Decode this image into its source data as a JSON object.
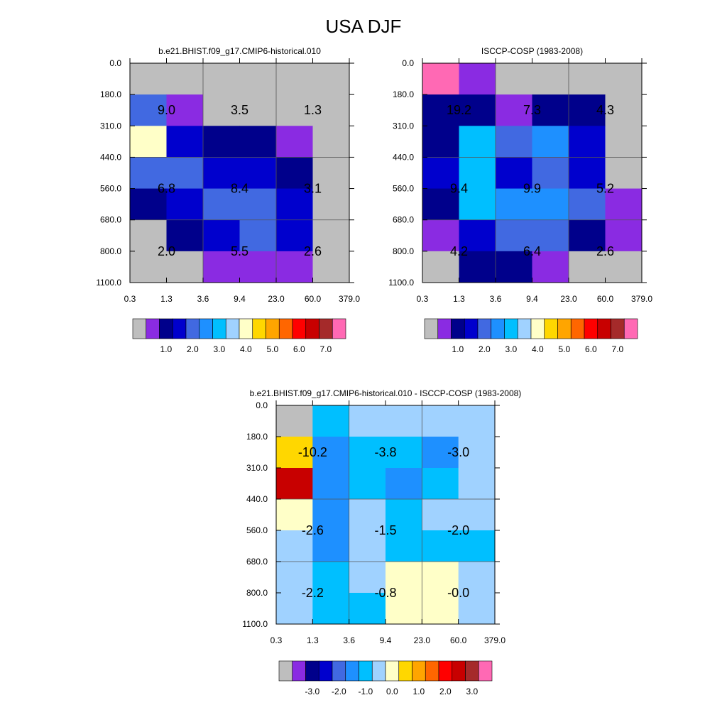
{
  "title": "USA DJF",
  "chart_data": [
    {
      "type": "heatmap",
      "title": "b.e21.BHIST.f09_g17.CMIP6-historical.010",
      "x_ticks": [
        "0.3",
        "1.3",
        "3.6",
        "9.4",
        "23.0",
        "60.0",
        "379.0"
      ],
      "y_ticks": [
        "0.0",
        "180.0",
        "310.0",
        "440.0",
        "560.0",
        "680.0",
        "800.0",
        "1100.0"
      ],
      "cells": [
        [
          "gray",
          "gray",
          "gray",
          "gray",
          "gray",
          "gray"
        ],
        [
          "royalblue",
          "purple",
          "gray",
          "gray",
          "gray",
          "gray"
        ],
        [
          "lightyellow",
          "blue",
          "navy",
          "navy",
          "purple",
          "gray"
        ],
        [
          "royalblue",
          "royalblue",
          "blue",
          "blue",
          "navy",
          "gray"
        ],
        [
          "navy",
          "blue",
          "royalblue",
          "royalblue",
          "blue",
          "gray"
        ],
        [
          "gray",
          "navy",
          "blue",
          "royalblue",
          "blue",
          "gray"
        ],
        [
          "gray",
          "gray",
          "purple",
          "purple",
          "purple",
          "gray"
        ]
      ],
      "annotations": [
        "9.0",
        "3.5",
        "1.3",
        "6.8",
        "8.4",
        "3.1",
        "2.0",
        "5.5",
        "2.6"
      ],
      "colorbar": {
        "colors": [
          "#bebebe",
          "#8a2be2",
          "#00008b",
          "#0000cd",
          "#4169e1",
          "#1e90ff",
          "#00bfff",
          "#a0d2ff",
          "#ffffc8",
          "#ffd700",
          "#ffa500",
          "#ff6600",
          "#ff0000",
          "#c80000",
          "#a52a2a",
          "#ff69b4"
        ],
        "labels": [
          "1.0",
          "2.0",
          "3.0",
          "4.0",
          "5.0",
          "6.0",
          "7.0"
        ]
      }
    },
    {
      "type": "heatmap",
      "title": "ISCCP-COSP (1983-2008)",
      "x_ticks": [
        "0.3",
        "1.3",
        "3.6",
        "9.4",
        "23.0",
        "60.0",
        "379.0"
      ],
      "y_ticks": [
        "0.0",
        "180.0",
        "310.0",
        "440.0",
        "560.0",
        "680.0",
        "800.0",
        "1100.0"
      ],
      "cells": [
        [
          "pink",
          "purple",
          "gray",
          "gray",
          "gray",
          "gray"
        ],
        [
          "navy",
          "navy",
          "purple",
          "navy",
          "navy",
          "gray"
        ],
        [
          "navy",
          "deepskyblue",
          "royalblue",
          "dodgerblue",
          "blue",
          "gray"
        ],
        [
          "blue",
          "deepskyblue",
          "blue",
          "royalblue",
          "blue",
          "gray"
        ],
        [
          "navy",
          "deepskyblue",
          "dodgerblue",
          "dodgerblue",
          "royalblue",
          "purple"
        ],
        [
          "purple",
          "blue",
          "royalblue",
          "royalblue",
          "navy",
          "purple"
        ],
        [
          "gray",
          "navy",
          "navy",
          "purple",
          "gray",
          "gray"
        ]
      ],
      "annotations": [
        "19.2",
        "7.3",
        "4.3",
        "9.4",
        "9.9",
        "5.2",
        "4.2",
        "6.4",
        "2.6"
      ],
      "colorbar": {
        "colors": [
          "#bebebe",
          "#8a2be2",
          "#00008b",
          "#0000cd",
          "#4169e1",
          "#1e90ff",
          "#00bfff",
          "#a0d2ff",
          "#ffffc8",
          "#ffd700",
          "#ffa500",
          "#ff6600",
          "#ff0000",
          "#c80000",
          "#a52a2a",
          "#ff69b4"
        ],
        "labels": [
          "1.0",
          "2.0",
          "3.0",
          "4.0",
          "5.0",
          "6.0",
          "7.0"
        ]
      }
    },
    {
      "type": "heatmap",
      "title": "b.e21.BHIST.f09_g17.CMIP6-historical.010 - ISCCP-COSP (1983-2008)",
      "x_ticks": [
        "0.3",
        "1.3",
        "3.6",
        "9.4",
        "23.0",
        "60.0",
        "379.0"
      ],
      "y_ticks": [
        "0.0",
        "180.0",
        "310.0",
        "440.0",
        "560.0",
        "680.0",
        "800.0",
        "1100.0"
      ],
      "cells": [
        [
          "gray",
          "deepskyblue",
          "lightblue",
          "lightblue",
          "lightblue",
          "lightblue"
        ],
        [
          "gold",
          "dodgerblue",
          "deepskyblue",
          "deepskyblue",
          "dodgerblue",
          "lightblue"
        ],
        [
          "red",
          "dodgerblue",
          "deepskyblue",
          "dodgerblue",
          "deepskyblue",
          "lightblue"
        ],
        [
          "lightyellow",
          "dodgerblue",
          "lightblue",
          "deepskyblue",
          "lightblue",
          "lightblue"
        ],
        [
          "lightblue",
          "dodgerblue",
          "lightblue",
          "deepskyblue",
          "deepskyblue",
          "deepskyblue"
        ],
        [
          "lightblue",
          "deepskyblue",
          "lightblue",
          "lightyellow",
          "lightyellow",
          "lightblue"
        ],
        [
          "lightblue",
          "deepskyblue",
          "deepskyblue",
          "lightyellow",
          "lightyellow",
          "lightblue"
        ]
      ],
      "annotations": [
        "-10.2",
        "-3.8",
        "-3.0",
        "-2.6",
        "-1.5",
        "-2.0",
        "-2.2",
        "-0.8",
        "-0.0"
      ],
      "colorbar": {
        "colors": [
          "#bebebe",
          "#8a2be2",
          "#00008b",
          "#0000cd",
          "#4169e1",
          "#1e90ff",
          "#00bfff",
          "#a0d2ff",
          "#ffffc8",
          "#ffd700",
          "#ffa500",
          "#ff6600",
          "#ff0000",
          "#c80000",
          "#a52a2a",
          "#ff69b4"
        ],
        "labels": [
          "-3.0",
          "-2.0",
          "-1.0",
          "0.0",
          "1.0",
          "2.0",
          "3.0"
        ]
      }
    }
  ],
  "palette": {
    "gray": "#bebebe",
    "purple": "#8a2be2",
    "navy": "#00008b",
    "blue": "#0000cd",
    "royalblue": "#4169e1",
    "dodgerblue": "#1e90ff",
    "deepskyblue": "#00bfff",
    "lightblue": "#a0d2ff",
    "lightyellow": "#ffffc8",
    "gold": "#ffd700",
    "red": "#c80000",
    "pink": "#ff69b4"
  }
}
